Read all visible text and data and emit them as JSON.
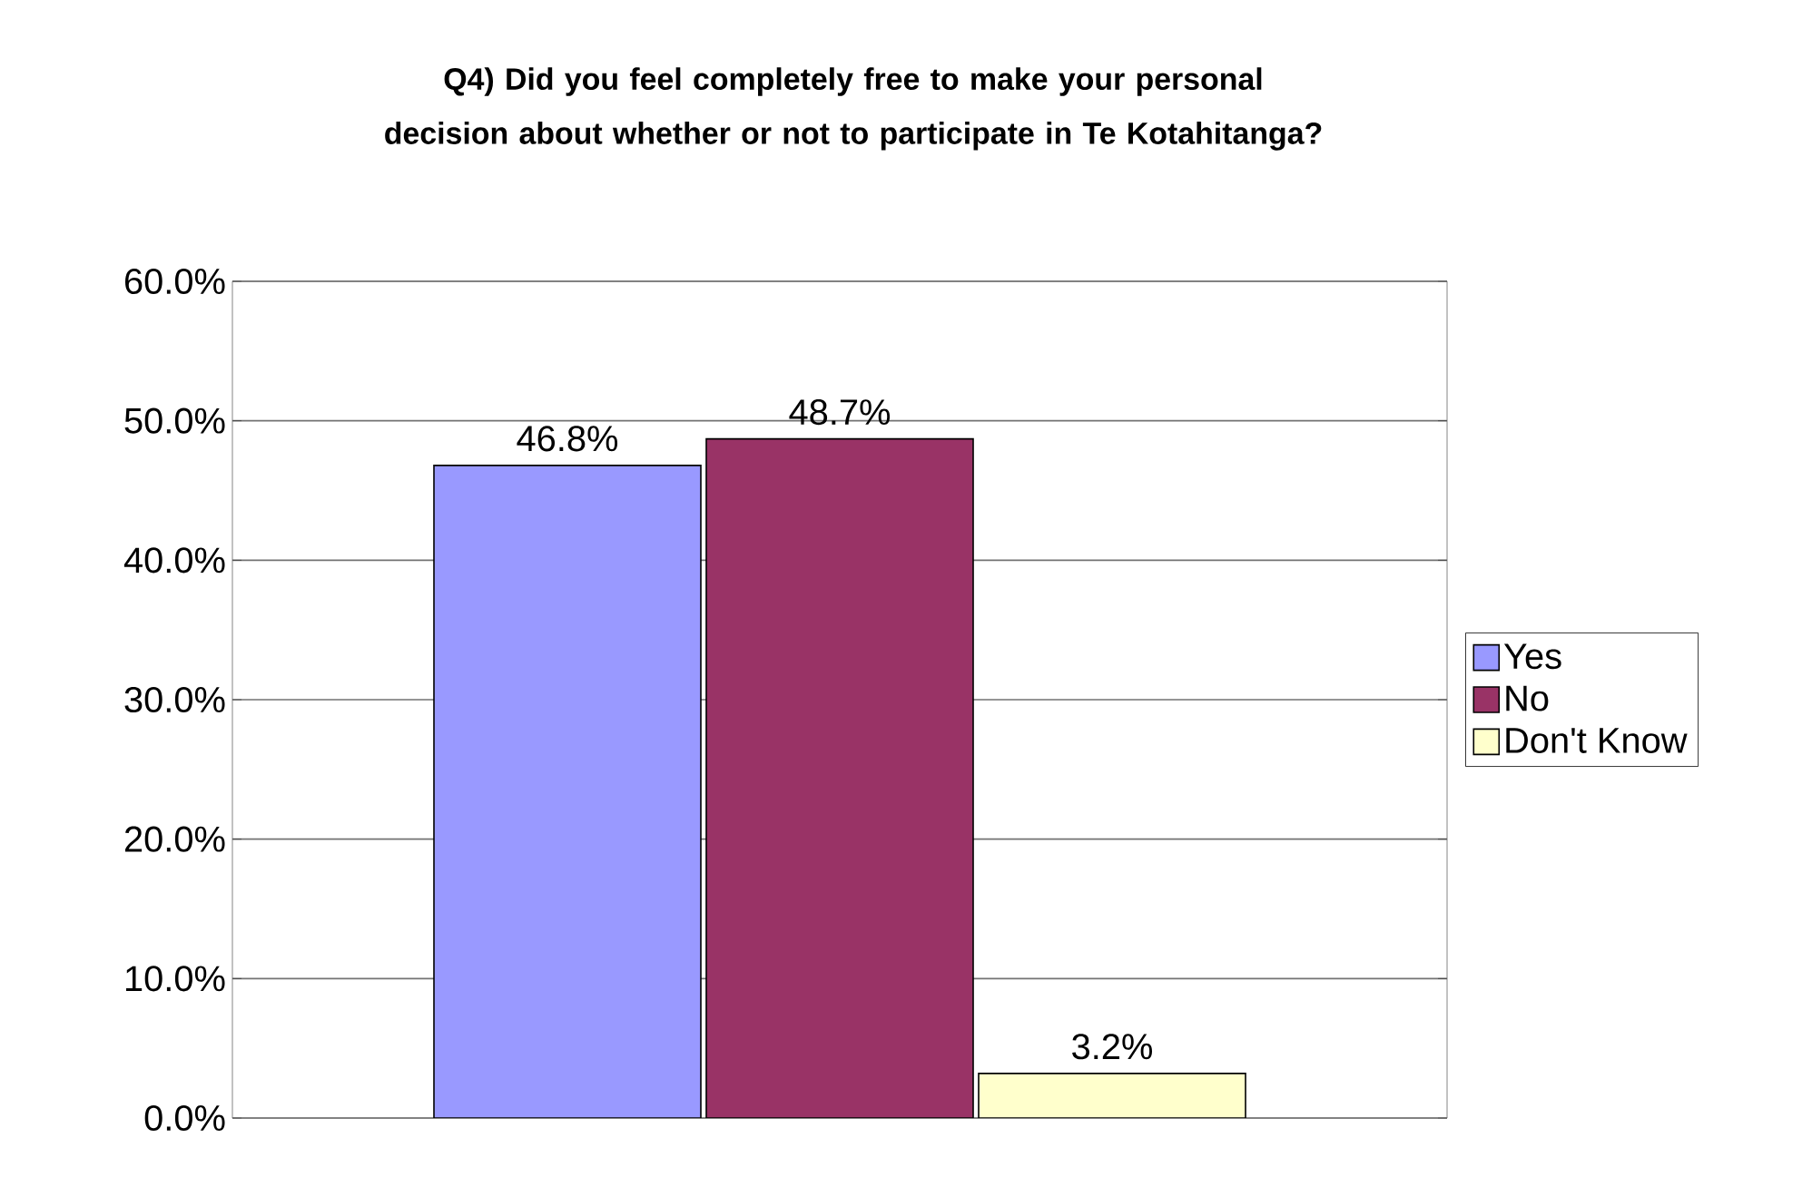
{
  "chart_data": {
    "type": "bar",
    "title": "Q4) Did you feel completely free to make your personal decision about whether or not to participate in Te Kotahitanga?",
    "categories": [
      null
    ],
    "series": [
      {
        "name": "Yes",
        "color": "#9999ff",
        "values": [
          46.8
        ],
        "value_labels": [
          "46.8%"
        ]
      },
      {
        "name": "No",
        "color": "#993366",
        "values": [
          48.7
        ],
        "value_labels": [
          "48.7%"
        ]
      },
      {
        "name": "Don't Know",
        "color": "#ffffcc",
        "values": [
          3.2
        ],
        "value_labels": [
          "3.2%"
        ]
      }
    ],
    "ylim": [
      0,
      60
    ],
    "yticks": [
      {
        "value": 0,
        "label": "0.0%"
      },
      {
        "value": 10,
        "label": "10.0%"
      },
      {
        "value": 20,
        "label": "20.0%"
      },
      {
        "value": 30,
        "label": "30.0%"
      },
      {
        "value": 40,
        "label": "40.0%"
      },
      {
        "value": 50,
        "label": "50.0%"
      },
      {
        "value": 60,
        "label": "60.0%"
      }
    ],
    "grid": "y",
    "legend": "right"
  }
}
